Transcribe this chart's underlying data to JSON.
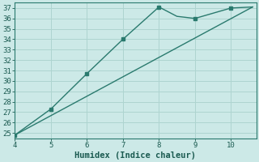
{
  "xlabel": "Humidex (Indice chaleur)",
  "bg_color": "#cce9e7",
  "line_color": "#2a7a6e",
  "grid_color": "#aed4d0",
  "line1_x": [
    4,
    5,
    6,
    7,
    8,
    8.5,
    9,
    10,
    10.6
  ],
  "line1_y": [
    24.8,
    27.3,
    30.7,
    34.0,
    37.1,
    36.2,
    36.0,
    37.0,
    37.1
  ],
  "line2_x": [
    4,
    10.6
  ],
  "line2_y": [
    24.8,
    37.1
  ],
  "marker_x1": [
    4,
    5,
    6,
    7,
    8,
    9,
    10
  ],
  "marker_y1": [
    24.8,
    27.3,
    30.7,
    34.0,
    37.1,
    36.0,
    37.0
  ],
  "xlim": [
    4,
    10.7
  ],
  "ylim": [
    24.5,
    37.5
  ],
  "xticks": [
    4,
    5,
    6,
    7,
    8,
    9,
    10
  ],
  "yticks": [
    25,
    26,
    27,
    28,
    29,
    30,
    31,
    32,
    33,
    34,
    35,
    36,
    37
  ],
  "tick_fontsize": 6.5,
  "label_fontsize": 7.5,
  "font_color": "#1a5a50"
}
